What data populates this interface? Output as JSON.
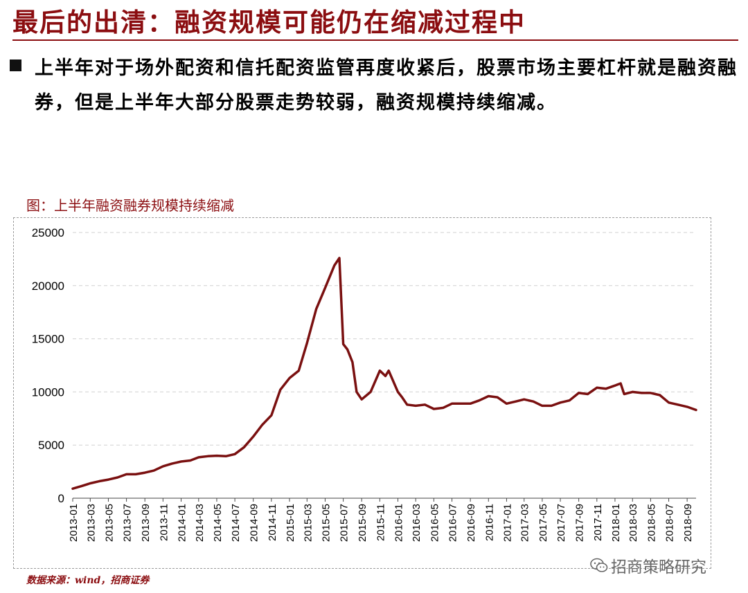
{
  "header": {
    "title": "最后的出清：融资规模可能仍在缩减过程中",
    "bullet": "上半年对于场外配资和信托配资监管再度收紧后，股票市场主要杠杆就是融资融券，但是上半年大部分股票走势较弱，融资规模持续缩减。"
  },
  "figure": {
    "caption": "图：上半年融资融券规模持续缩减",
    "source": "数据来源：wind，招商证券",
    "watermark": "招商策略研究"
  },
  "colors": {
    "accent": "#8b0d10",
    "line": "#7a1010",
    "grid": "#d0d0d0"
  },
  "icons": {
    "watermark": "wechat-icon"
  },
  "chart_data": {
    "type": "line",
    "title": "",
    "xlabel": "",
    "ylabel": "",
    "ylim": [
      0,
      25000
    ],
    "yticks": [
      0,
      5000,
      10000,
      15000,
      20000,
      25000
    ],
    "grid": true,
    "legend": "none",
    "xticks": [
      "2013-01",
      "2013-03",
      "2013-05",
      "2013-07",
      "2013-09",
      "2013-11",
      "2014-01",
      "2014-03",
      "2014-05",
      "2014-07",
      "2014-09",
      "2014-11",
      "2015-01",
      "2015-03",
      "2015-05",
      "2015-07",
      "2015-09",
      "2015-11",
      "2016-01",
      "2016-03",
      "2016-05",
      "2016-07",
      "2016-09",
      "2016-11",
      "2017-01",
      "2017-03",
      "2017-05",
      "2017-07",
      "2017-09",
      "2017-11",
      "2018-01",
      "2018-03",
      "2018-05",
      "2018-07",
      "2018-09"
    ],
    "series": [
      {
        "name": "",
        "x": [
          "2013-01",
          "2013-02",
          "2013-03",
          "2013-04",
          "2013-05",
          "2013-06",
          "2013-07",
          "2013-08",
          "2013-09",
          "2013-10",
          "2013-11",
          "2013-12",
          "2014-01",
          "2014-02",
          "2014-03",
          "2014-04",
          "2014-05",
          "2014-06",
          "2014-07",
          "2014-08",
          "2014-09",
          "2014-10",
          "2014-11",
          "2014-12",
          "2015-01",
          "2015-02",
          "2015-03",
          "2015-04",
          "2015-05",
          "2015-06",
          "2015-06-18",
          "2015-07",
          "2015-07-15",
          "2015-08",
          "2015-08-15",
          "2015-09",
          "2015-10",
          "2015-11",
          "2015-11-20",
          "2015-12",
          "2016-01",
          "2016-01-15",
          "2016-02",
          "2016-03",
          "2016-04",
          "2016-05",
          "2016-06",
          "2016-07",
          "2016-08",
          "2016-09",
          "2016-10",
          "2016-11",
          "2016-12",
          "2017-01",
          "2017-02",
          "2017-03",
          "2017-04",
          "2017-05",
          "2017-06",
          "2017-07",
          "2017-08",
          "2017-09",
          "2017-10",
          "2017-11",
          "2017-12",
          "2018-01",
          "2018-01-20",
          "2018-02",
          "2018-03",
          "2018-04",
          "2018-05",
          "2018-06",
          "2018-07",
          "2018-08",
          "2018-09",
          "2018-10"
        ],
        "values": [
          900,
          1150,
          1400,
          1600,
          1750,
          1950,
          2250,
          2250,
          2400,
          2600,
          3000,
          3250,
          3450,
          3550,
          3850,
          3950,
          4000,
          3950,
          4150,
          4800,
          5800,
          6900,
          7800,
          10200,
          11300,
          12000,
          14600,
          17800,
          19800,
          21900,
          22600,
          14500,
          14000,
          12800,
          10000,
          9300,
          10000,
          12000,
          11500,
          12000,
          10000,
          9500,
          8800,
          8700,
          8800,
          8400,
          8500,
          8900,
          8900,
          8900,
          9200,
          9600,
          9500,
          8900,
          9100,
          9300,
          9100,
          8700,
          8700,
          9000,
          9200,
          9900,
          9800,
          10400,
          10300,
          10600,
          10800,
          9800,
          10000,
          9900,
          9900,
          9700,
          9000,
          8800,
          8600,
          8300
        ]
      }
    ]
  }
}
